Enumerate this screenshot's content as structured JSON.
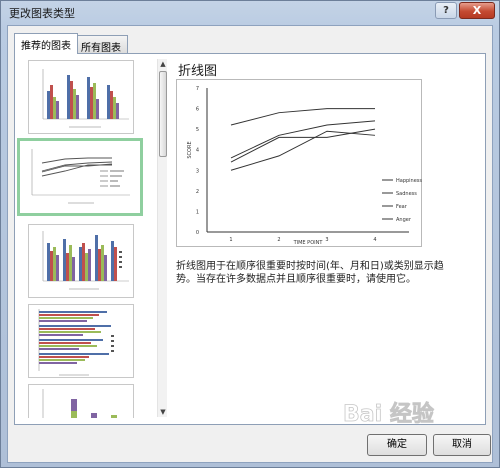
{
  "window": {
    "title": "更改图表类型",
    "help_label": "?",
    "close_label": "X"
  },
  "tabs": [
    {
      "label": "推荐的图表"
    },
    {
      "label": "所有图表"
    }
  ],
  "scrollbar": {
    "up": "▲",
    "down": "▼"
  },
  "preview": {
    "title": "折线图",
    "description": "折线图用于在顺序很重要时按时间(年、月和日)或类别显示趋势。当存在许多数据点并且顺序很重要时，请使用它。"
  },
  "chart_data": {
    "type": "line",
    "x": [
      1,
      2,
      3,
      4
    ],
    "xlabel": "TIME POINT",
    "ylabel": "SCORE",
    "ylim": [
      0,
      7
    ],
    "yticks": [
      0,
      1,
      2,
      3,
      4,
      5,
      6,
      7
    ],
    "grid": false,
    "legend_position": "right",
    "series": [
      {
        "name": "Happiness",
        "values": [
          5.2,
          5.8,
          6.0,
          6.0
        ]
      },
      {
        "name": "Sadness",
        "values": [
          3.6,
          4.7,
          5.2,
          5.4
        ]
      },
      {
        "name": "Fear",
        "values": [
          3.4,
          4.6,
          4.6,
          5.0
        ]
      },
      {
        "name": "Anger",
        "values": [
          3.0,
          3.7,
          4.9,
          4.7
        ]
      }
    ]
  },
  "buttons": {
    "ok": "确定",
    "cancel": "取消"
  },
  "watermark": {
    "text": "Bai 经验"
  }
}
